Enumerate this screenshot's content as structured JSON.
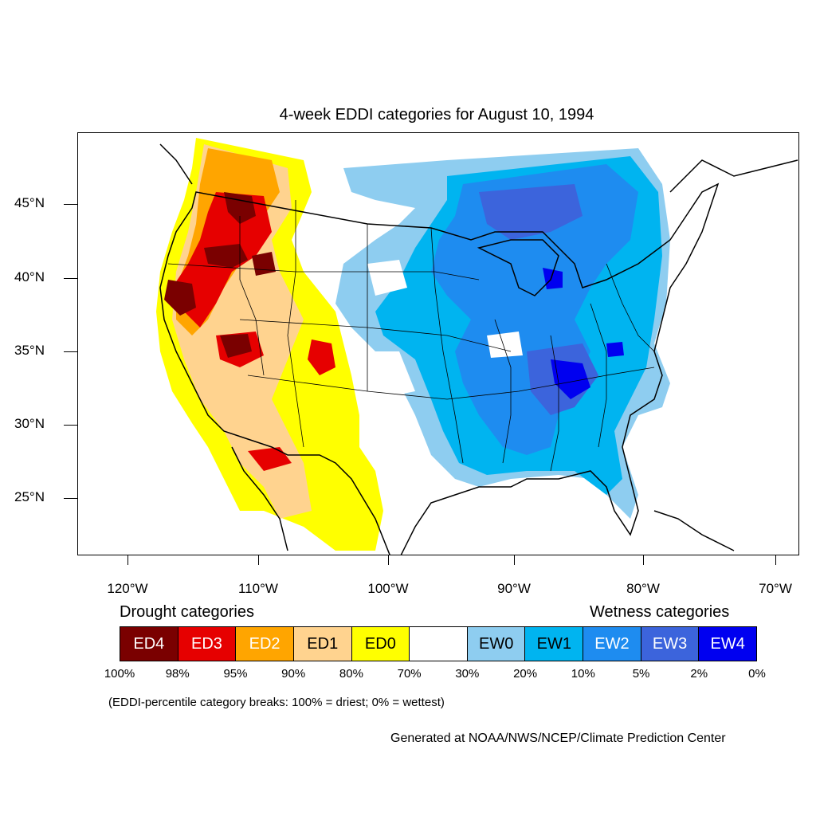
{
  "title": "4-week EDDI categories for August 10, 1994",
  "lat_labels": [
    "45°N",
    "40°N",
    "35°N",
    "30°N",
    "25°N"
  ],
  "lon_labels": [
    "120°W",
    "110°W",
    "100°W",
    "90°W",
    "80°W",
    "70°W"
  ],
  "legend": {
    "drought_heading": "Drought categories",
    "wetness_heading": "Wetness categories",
    "categories": [
      {
        "label": "ED4",
        "color": "#7a0000",
        "text_color": "#ffffff"
      },
      {
        "label": "ED3",
        "color": "#e60000",
        "text_color": "#ffffff"
      },
      {
        "label": "ED2",
        "color": "#ffa500",
        "text_color": "#ffffff"
      },
      {
        "label": "ED1",
        "color": "#ffd38f",
        "text_color": "#000000"
      },
      {
        "label": "ED0",
        "color": "#ffff00",
        "text_color": "#000000"
      },
      {
        "label": "",
        "color": "#ffffff",
        "text_color": "#000000"
      },
      {
        "label": "EW0",
        "color": "#8ecdf0",
        "text_color": "#000000"
      },
      {
        "label": "EW1",
        "color": "#00b4f0",
        "text_color": "#000000"
      },
      {
        "label": "EW2",
        "color": "#1e8cf0",
        "text_color": "#ffffff"
      },
      {
        "label": "EW3",
        "color": "#3c64dc",
        "text_color": "#ffffff"
      },
      {
        "label": "EW4",
        "color": "#0000f0",
        "text_color": "#ffffff"
      }
    ],
    "breaks": [
      "100%",
      "98%",
      "95%",
      "90%",
      "80%",
      "70%",
      "30%",
      "20%",
      "10%",
      "5%",
      "2%",
      "0%"
    ],
    "note": "(EDDI-percentile category breaks: 100% = driest; 0% = wettest)"
  },
  "credit": "Generated at NOAA/NWS/NCEP/Climate Prediction Center"
}
